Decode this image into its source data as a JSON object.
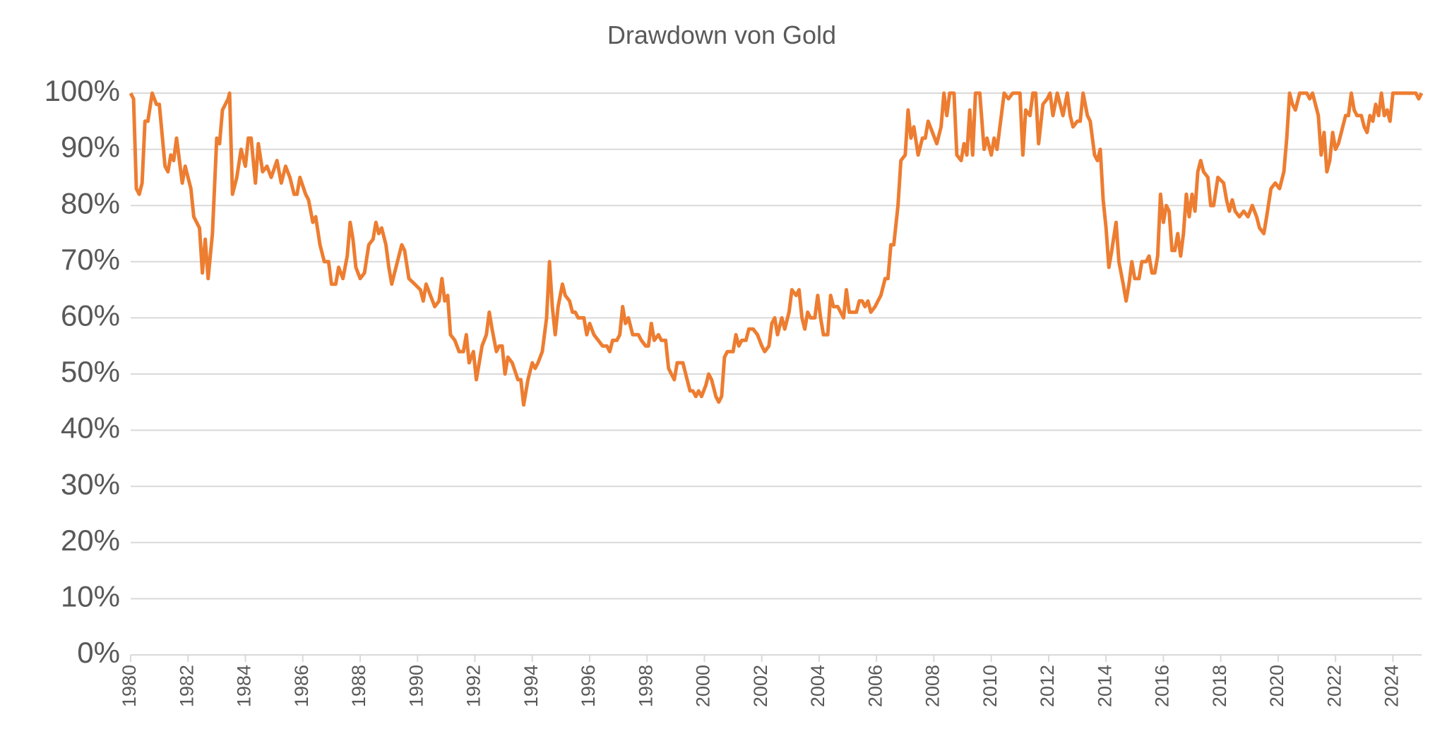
{
  "chart_data": {
    "type": "line",
    "title": "Drawdown von Gold",
    "x": [
      1980.0,
      1980.1,
      1980.2,
      1980.3,
      1980.4,
      1980.5,
      1980.6,
      1980.75,
      1980.9,
      1981.0,
      1981.2,
      1981.3,
      1981.4,
      1981.5,
      1981.6,
      1981.8,
      1981.9,
      1982.1,
      1982.2,
      1982.4,
      1982.5,
      1982.6,
      1982.7,
      1982.85,
      1983.0,
      1983.1,
      1983.2,
      1983.4,
      1983.45,
      1983.55,
      1983.7,
      1983.85,
      1984.0,
      1984.1,
      1984.2,
      1984.35,
      1984.45,
      1984.6,
      1984.75,
      1984.9,
      1985.1,
      1985.25,
      1985.4,
      1985.55,
      1985.7,
      1985.8,
      1985.9,
      1986.1,
      1986.2,
      1986.35,
      1986.45,
      1986.6,
      1986.75,
      1986.9,
      1987.0,
      1987.15,
      1987.25,
      1987.4,
      1987.55,
      1987.65,
      1987.75,
      1987.85,
      1988.0,
      1988.15,
      1988.3,
      1988.45,
      1988.55,
      1988.65,
      1988.75,
      1988.9,
      1989.0,
      1989.1,
      1989.2,
      1989.35,
      1989.45,
      1989.55,
      1989.7,
      1989.9,
      1990.1,
      1990.2,
      1990.3,
      1990.45,
      1990.6,
      1990.75,
      1990.85,
      1990.95,
      1991.05,
      1991.15,
      1991.3,
      1991.45,
      1991.6,
      1991.7,
      1991.8,
      1991.95,
      1992.05,
      1992.15,
      1992.25,
      1992.4,
      1992.5,
      1992.6,
      1992.75,
      1992.85,
      1992.95,
      1993.05,
      1993.15,
      1993.3,
      1993.5,
      1993.6,
      1993.7,
      1993.85,
      1994.0,
      1994.1,
      1994.2,
      1994.35,
      1994.5,
      1994.6,
      1994.7,
      1994.8,
      1994.9,
      1995.05,
      1995.15,
      1995.3,
      1995.4,
      1995.5,
      1995.6,
      1995.8,
      1995.9,
      1996.0,
      1996.15,
      1996.3,
      1996.45,
      1996.6,
      1996.7,
      1996.8,
      1996.95,
      1997.05,
      1997.15,
      1997.25,
      1997.35,
      1997.5,
      1997.7,
      1997.8,
      1997.95,
      1998.05,
      1998.15,
      1998.25,
      1998.4,
      1998.5,
      1998.65,
      1998.75,
      1998.85,
      1998.95,
      1999.05,
      1999.15,
      1999.25,
      1999.35,
      1999.5,
      1999.6,
      1999.7,
      1999.8,
      1999.9,
      2000.05,
      2000.15,
      2000.25,
      2000.4,
      2000.5,
      2000.6,
      2000.7,
      2000.8,
      2001.0,
      2001.1,
      2001.2,
      2001.3,
      2001.45,
      2001.55,
      2001.7,
      2001.85,
      2002.0,
      2002.1,
      2002.25,
      2002.35,
      2002.45,
      2002.55,
      2002.7,
      2002.8,
      2002.95,
      2003.05,
      2003.2,
      2003.3,
      2003.4,
      2003.5,
      2003.6,
      2003.7,
      2003.85,
      2003.95,
      2004.05,
      2004.15,
      2004.3,
      2004.4,
      2004.5,
      2004.65,
      2004.75,
      2004.85,
      2004.95,
      2005.05,
      2005.15,
      2005.3,
      2005.4,
      2005.5,
      2005.6,
      2005.7,
      2005.8,
      2005.95,
      2006.05,
      2006.15,
      2006.3,
      2006.4,
      2006.5,
      2006.6,
      2006.75,
      2006.85,
      2007.0,
      2007.1,
      2007.2,
      2007.3,
      2007.45,
      2007.6,
      2007.7,
      2007.8,
      2007.95,
      2008.1,
      2008.25,
      2008.35,
      2008.45,
      2008.55,
      2008.7,
      2008.8,
      2008.95,
      2009.05,
      2009.15,
      2009.25,
      2009.35,
      2009.45,
      2009.6,
      2009.75,
      2009.85,
      2010.0,
      2010.1,
      2010.2,
      2010.35,
      2010.45,
      2010.6,
      2010.75,
      2010.9,
      2011.0,
      2011.1,
      2011.2,
      2011.35,
      2011.45,
      2011.55,
      2011.65,
      2011.8,
      2011.95,
      2012.05,
      2012.15,
      2012.3,
      2012.4,
      2012.5,
      2012.65,
      2012.75,
      2012.85,
      2013.0,
      2013.1,
      2013.2,
      2013.35,
      2013.45,
      2013.6,
      2013.7,
      2013.8,
      2013.9,
      2014.0,
      2014.1,
      2014.2,
      2014.35,
      2014.45,
      2014.6,
      2014.7,
      2014.8,
      2014.9,
      2015.0,
      2015.15,
      2015.25,
      2015.4,
      2015.5,
      2015.6,
      2015.7,
      2015.8,
      2015.9,
      2016.0,
      2016.1,
      2016.2,
      2016.3,
      2016.4,
      2016.5,
      2016.6,
      2016.7,
      2016.8,
      2016.9,
      2017.0,
      2017.1,
      2017.2,
      2017.3,
      2017.4,
      2017.55,
      2017.65,
      2017.75,
      2017.9,
      2018.1,
      2018.2,
      2018.3,
      2018.4,
      2018.5,
      2018.65,
      2018.8,
      2018.95,
      2019.1,
      2019.25,
      2019.35,
      2019.5,
      2019.6,
      2019.75,
      2019.9,
      2020.05,
      2020.2,
      2020.3,
      2020.4,
      2020.5,
      2020.6,
      2020.75,
      2020.85,
      2021.0,
      2021.1,
      2021.2,
      2021.3,
      2021.4,
      2021.5,
      2021.6,
      2021.7,
      2021.8,
      2021.9,
      2022.0,
      2022.1,
      2022.2,
      2022.35,
      2022.45,
      2022.55,
      2022.65,
      2022.75,
      2022.9,
      2023.0,
      2023.1,
      2023.2,
      2023.3,
      2023.4,
      2023.5,
      2023.6,
      2023.7,
      2023.8,
      2023.9,
      2024.0,
      2024.2,
      2024.4,
      2024.6,
      2024.8,
      2024.9,
      2025.0
    ],
    "series": [
      {
        "color": "#ed7d31",
        "values": [
          100,
          99,
          83,
          82,
          84,
          95,
          95,
          100,
          98,
          98,
          87,
          86,
          89,
          88,
          92,
          84,
          87,
          83,
          78,
          76,
          68,
          74,
          67,
          75,
          92,
          91,
          97,
          99,
          100,
          82,
          85,
          90,
          87,
          92,
          92,
          84,
          91,
          86,
          87,
          85,
          88,
          84,
          87,
          85,
          82,
          82,
          85,
          82,
          81,
          77,
          78,
          73,
          70,
          70,
          66,
          66,
          69,
          67,
          71,
          77,
          74,
          69,
          67,
          68,
          73,
          74,
          77,
          75,
          76,
          73,
          69,
          66,
          68,
          71,
          73,
          72,
          67,
          66,
          65,
          63,
          66,
          64,
          62,
          63,
          67,
          63,
          64,
          57,
          56,
          54,
          54,
          57,
          52,
          54,
          49,
          52,
          55,
          57,
          61,
          58,
          54,
          55,
          55,
          50,
          53,
          52,
          49,
          49,
          44.5,
          49,
          52,
          51,
          52,
          54,
          60,
          70,
          62,
          57,
          62,
          66,
          64,
          63,
          61,
          61,
          60,
          60,
          57,
          59,
          57,
          56,
          55,
          55,
          54,
          56,
          56,
          57,
          62,
          59,
          60,
          57,
          57,
          56,
          55,
          55,
          59,
          56,
          57,
          56,
          56,
          51,
          50,
          49,
          52,
          52,
          52,
          50,
          47,
          47,
          46,
          47,
          46,
          48,
          50,
          49,
          46,
          45,
          46,
          53,
          54,
          54,
          57,
          55,
          56,
          56,
          58,
          58,
          57,
          55,
          54,
          55,
          59,
          60,
          57,
          60,
          58,
          61,
          65,
          64,
          65,
          60,
          58,
          61,
          60,
          60,
          64,
          60,
          57,
          57,
          64,
          62,
          62,
          61,
          60,
          65,
          61,
          61,
          61,
          63,
          63,
          62,
          63,
          61,
          62,
          63,
          64,
          67,
          67,
          73,
          73,
          80,
          88,
          89,
          97,
          92,
          94,
          89,
          92,
          92,
          95,
          93,
          91,
          94,
          100,
          96,
          100,
          100,
          89,
          88,
          91,
          89,
          97,
          89,
          100,
          100,
          90,
          92,
          89,
          92,
          90,
          96,
          100,
          99,
          100,
          100,
          100,
          89,
          97,
          96,
          100,
          100,
          91,
          98,
          99,
          100,
          96,
          100,
          98,
          96,
          100,
          96,
          94,
          95,
          95,
          100,
          96,
          95,
          89,
          88,
          90,
          81,
          76,
          69,
          72,
          77,
          70,
          66,
          63,
          66,
          70,
          67,
          67,
          70,
          70,
          71,
          68,
          68,
          71,
          82,
          77,
          80,
          79,
          72,
          72,
          75,
          71,
          75,
          82,
          78,
          82,
          79,
          86,
          88,
          86,
          85,
          80,
          80,
          85,
          84,
          81,
          79,
          81,
          79,
          78,
          79,
          78,
          80,
          78,
          76,
          75,
          78,
          83,
          84,
          83,
          86,
          92,
          100,
          98,
          97,
          100,
          100,
          100,
          99,
          100,
          98,
          96,
          89,
          93,
          86,
          88,
          93,
          90,
          91,
          93,
          96,
          96,
          100,
          97,
          96,
          96,
          94,
          93,
          96,
          95,
          98,
          96,
          100,
          96,
          97,
          95,
          100,
          100,
          100,
          100,
          100,
          99,
          100
        ]
      }
    ],
    "xlim": [
      1980,
      2025
    ],
    "xticks": [
      1980,
      1982,
      1984,
      1986,
      1988,
      1990,
      1992,
      1994,
      1996,
      1998,
      2000,
      2002,
      2004,
      2006,
      2008,
      2010,
      2012,
      2014,
      2016,
      2018,
      2020,
      2022,
      2024
    ],
    "ylim": [
      0,
      100
    ],
    "yticks": [
      {
        "value": 0,
        "label": "0%"
      },
      {
        "value": 10,
        "label": "10%"
      },
      {
        "value": 20,
        "label": "20%"
      },
      {
        "value": 30,
        "label": "30%"
      },
      {
        "value": 40,
        "label": "40%"
      },
      {
        "value": 50,
        "label": "50%"
      },
      {
        "value": 60,
        "label": "60%"
      },
      {
        "value": 70,
        "label": "70%"
      },
      {
        "value": 80,
        "label": "80%"
      },
      {
        "value": 90,
        "label": "90%"
      },
      {
        "value": 100,
        "label": "100%"
      }
    ],
    "grid": true
  }
}
